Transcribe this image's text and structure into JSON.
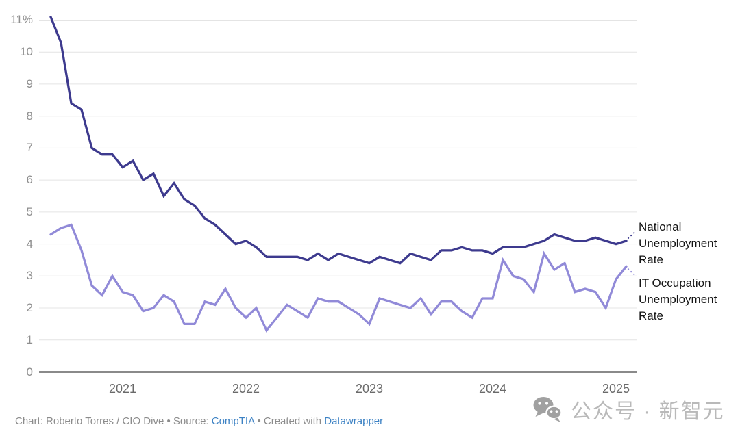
{
  "chart_data": {
    "type": "line",
    "x": [
      "2020-06",
      "2020-07",
      "2020-08",
      "2020-09",
      "2020-10",
      "2020-11",
      "2020-12",
      "2021-01",
      "2021-02",
      "2021-03",
      "2021-04",
      "2021-05",
      "2021-06",
      "2021-07",
      "2021-08",
      "2021-09",
      "2021-10",
      "2021-11",
      "2021-12",
      "2022-01",
      "2022-02",
      "2022-03",
      "2022-04",
      "2022-05",
      "2022-06",
      "2022-07",
      "2022-08",
      "2022-09",
      "2022-10",
      "2022-11",
      "2022-12",
      "2023-01",
      "2023-02",
      "2023-03",
      "2023-04",
      "2023-05",
      "2023-06",
      "2023-07",
      "2023-08",
      "2023-09",
      "2023-10",
      "2023-11",
      "2023-12",
      "2024-01",
      "2024-02",
      "2024-03",
      "2024-04",
      "2024-05",
      "2024-06",
      "2024-07",
      "2024-08",
      "2024-09",
      "2024-10",
      "2024-11",
      "2024-12",
      "2025-01",
      "2025-02"
    ],
    "series": [
      {
        "name": "National Unemployment Rate",
        "label": "National Unemployment Rate",
        "color": "#3d3a8e",
        "annotation_dir": "up",
        "values": [
          11.1,
          10.3,
          8.4,
          8.2,
          7.0,
          6.8,
          6.8,
          6.4,
          6.6,
          6.0,
          6.2,
          5.5,
          5.9,
          5.4,
          5.2,
          4.8,
          4.6,
          4.3,
          4.0,
          4.1,
          3.9,
          3.6,
          3.6,
          3.6,
          3.6,
          3.5,
          3.7,
          3.5,
          3.7,
          3.6,
          3.5,
          3.4,
          3.6,
          3.5,
          3.4,
          3.7,
          3.6,
          3.5,
          3.8,
          3.8,
          3.9,
          3.8,
          3.8,
          3.7,
          3.9,
          3.9,
          3.9,
          4.0,
          4.1,
          4.3,
          4.2,
          4.1,
          4.1,
          4.2,
          4.1,
          4.0,
          4.1
        ]
      },
      {
        "name": "IT Occupation Unemployment Rate",
        "label": "IT Occupation Unemployment Rate",
        "color": "#918ad8",
        "annotation_dir": "down",
        "values": [
          4.3,
          4.5,
          4.6,
          3.8,
          2.7,
          2.4,
          3.0,
          2.5,
          2.4,
          1.9,
          2.0,
          2.4,
          2.2,
          1.5,
          1.5,
          2.2,
          2.1,
          2.6,
          2.0,
          1.7,
          2.0,
          1.3,
          1.7,
          2.1,
          1.9,
          1.7,
          2.3,
          2.2,
          2.2,
          2.0,
          1.8,
          1.5,
          2.3,
          2.2,
          2.1,
          2.0,
          2.3,
          1.8,
          2.2,
          2.2,
          1.9,
          1.7,
          2.3,
          2.3,
          3.5,
          3.0,
          2.9,
          2.5,
          3.7,
          3.2,
          3.4,
          2.5,
          2.6,
          2.5,
          2.0,
          2.9,
          3.3
        ]
      }
    ],
    "y_ticks": [
      {
        "value": 0,
        "label": "0"
      },
      {
        "value": 1,
        "label": "1"
      },
      {
        "value": 2,
        "label": "2"
      },
      {
        "value": 3,
        "label": "3"
      },
      {
        "value": 4,
        "label": "4"
      },
      {
        "value": 5,
        "label": "5"
      },
      {
        "value": 6,
        "label": "6"
      },
      {
        "value": 7,
        "label": "7"
      },
      {
        "value": 8,
        "label": "8"
      },
      {
        "value": 9,
        "label": "9"
      },
      {
        "value": 10,
        "label": "10"
      },
      {
        "value": 11,
        "label": "11%"
      }
    ],
    "x_ticks": [
      {
        "label": "2021",
        "month_index": 7
      },
      {
        "label": "2022",
        "month_index": 19
      },
      {
        "label": "2023",
        "month_index": 31
      },
      {
        "label": "2024",
        "month_index": 43
      },
      {
        "label": "2025",
        "month_index": 55
      }
    ],
    "title": "",
    "xlabel": "",
    "ylabel": "",
    "ylim": [
      0,
      11.5
    ],
    "grid": "horizontal",
    "legend_position": "right-edge-annotations"
  },
  "footer": {
    "text1": "Chart: Roberto Torres / CIO Dive • Source: ",
    "link1": "CompTIA",
    "text2": " • Created with ",
    "link2": "Datawrapper"
  },
  "watermark": {
    "icon": "wechat-icon",
    "text": "公众号 · 新智元"
  },
  "colors": {
    "background": "#ffffff",
    "gridline": "#e4e4e4",
    "axis": "#141414",
    "y_tick_text": "#8f8f8f",
    "x_tick_text": "#6a6a6a",
    "annotation_text": "#141414",
    "footer_text": "#8b8b8b",
    "link": "#3d82c4",
    "watermark_icon": "#a1a1a1",
    "watermark_text": "#b9b9b9"
  }
}
